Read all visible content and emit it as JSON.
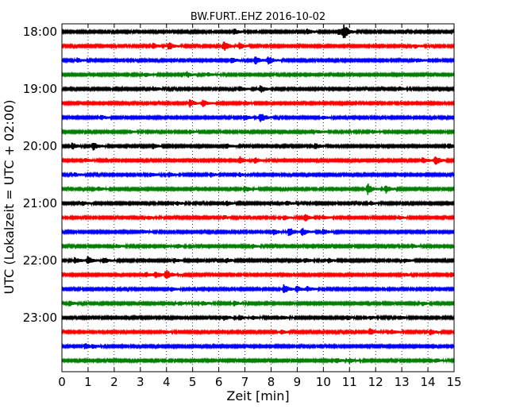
{
  "chart_data": {
    "type": "line",
    "title": "BW.FURT..EHZ 2016-10-02",
    "xlabel": "Zeit  [min]",
    "ylabel": "UTC (Lokalzeit = UTC + 02:00)",
    "xlim": [
      0,
      15
    ],
    "x_ticks": [
      0,
      1,
      2,
      3,
      4,
      5,
      6,
      7,
      8,
      9,
      10,
      11,
      12,
      13,
      14,
      15
    ],
    "x_tick_labels": [
      "0",
      "1",
      "2",
      "3",
      "4",
      "5",
      "6",
      "7",
      "8",
      "9",
      "10",
      "11",
      "12",
      "13",
      "14",
      "15"
    ],
    "grid": "vertical dotted",
    "y_tick_labels": [
      "18:00",
      "19:00",
      "20:00",
      "21:00",
      "22:00",
      "23:00"
    ],
    "y_tick_rows": [
      0,
      4,
      8,
      12,
      16,
      20
    ],
    "series_colors": [
      "#000000",
      "#ff0000",
      "#0000ff",
      "#008000"
    ],
    "rows": [
      {
        "start": "18:00",
        "color": "#000000",
        "events": [
          {
            "x": 6.6,
            "amp": 0.5
          },
          {
            "x": 9.4,
            "amp": 0.45
          },
          {
            "x": 10.8,
            "amp": 1.0
          },
          {
            "x": 10.6,
            "amp": 0.6
          }
        ]
      },
      {
        "start": "18:15",
        "color": "#ff0000",
        "events": [
          {
            "x": 3.5,
            "amp": 0.45
          },
          {
            "x": 4.1,
            "amp": 0.6
          },
          {
            "x": 6.2,
            "amp": 0.8
          },
          {
            "x": 6.8,
            "amp": 0.5
          },
          {
            "x": 13.5,
            "amp": 0.3
          }
        ]
      },
      {
        "start": "18:30",
        "color": "#0000ff",
        "events": [
          {
            "x": 0.6,
            "amp": 0.35
          },
          {
            "x": 6.5,
            "amp": 0.45
          },
          {
            "x": 7.4,
            "amp": 0.6
          },
          {
            "x": 7.9,
            "amp": 0.65
          },
          {
            "x": 13.6,
            "amp": 0.3
          }
        ]
      },
      {
        "start": "18:45",
        "color": "#008000",
        "events": [
          {
            "x": 3.2,
            "amp": 0.3
          },
          {
            "x": 4.8,
            "amp": 0.45
          },
          {
            "x": 5.6,
            "amp": 0.3
          }
        ]
      },
      {
        "start": "19:00",
        "color": "#000000",
        "events": [
          {
            "x": 3.5,
            "amp": 0.35
          },
          {
            "x": 6.8,
            "amp": 0.4
          },
          {
            "x": 7.6,
            "amp": 0.6
          },
          {
            "x": 12.9,
            "amp": 0.3
          }
        ]
      },
      {
        "start": "19:15",
        "color": "#ff0000",
        "events": [
          {
            "x": 4.9,
            "amp": 0.6
          },
          {
            "x": 5.4,
            "amp": 0.5
          },
          {
            "x": 7.0,
            "amp": 0.35
          }
        ]
      },
      {
        "start": "19:30",
        "color": "#0000ff",
        "events": [
          {
            "x": 1.5,
            "amp": 0.35
          },
          {
            "x": 7.0,
            "amp": 0.5
          },
          {
            "x": 7.6,
            "amp": 0.8
          },
          {
            "x": 10.0,
            "amp": 0.25
          }
        ]
      },
      {
        "start": "19:45",
        "color": "#008000",
        "events": [
          {
            "x": 2.6,
            "amp": 0.25
          },
          {
            "x": 4.9,
            "amp": 0.3
          },
          {
            "x": 9.8,
            "amp": 0.3
          },
          {
            "x": 11.9,
            "amp": 0.25
          }
        ]
      },
      {
        "start": "20:00",
        "color": "#000000",
        "events": [
          {
            "x": 0.4,
            "amp": 0.5
          },
          {
            "x": 1.2,
            "amp": 0.7
          },
          {
            "x": 3.5,
            "amp": 0.4
          },
          {
            "x": 6.3,
            "amp": 0.35
          },
          {
            "x": 9.7,
            "amp": 0.45
          },
          {
            "x": 14.8,
            "amp": 0.45
          }
        ]
      },
      {
        "start": "20:15",
        "color": "#ff0000",
        "events": [
          {
            "x": 0.9,
            "amp": 0.3
          },
          {
            "x": 6.8,
            "amp": 0.65
          },
          {
            "x": 7.4,
            "amp": 0.45
          },
          {
            "x": 14.3,
            "amp": 0.7
          },
          {
            "x": 13.8,
            "amp": 0.45
          }
        ]
      },
      {
        "start": "20:30",
        "color": "#0000ff",
        "events": [
          {
            "x": 0.5,
            "amp": 0.3
          },
          {
            "x": 3.4,
            "amp": 0.3
          },
          {
            "x": 4.1,
            "amp": 0.35
          },
          {
            "x": 5.7,
            "amp": 0.3
          },
          {
            "x": 6.8,
            "amp": 0.3
          }
        ]
      },
      {
        "start": "20:45",
        "color": "#008000",
        "events": [
          {
            "x": 1.4,
            "amp": 0.35
          },
          {
            "x": 7.0,
            "amp": 0.5
          },
          {
            "x": 11.7,
            "amp": 0.85
          },
          {
            "x": 12.4,
            "amp": 0.6
          }
        ]
      },
      {
        "start": "21:00",
        "color": "#000000",
        "events": [
          {
            "x": 0.8,
            "amp": 0.3
          },
          {
            "x": 4.4,
            "amp": 0.3
          },
          {
            "x": 6.3,
            "amp": 0.4
          },
          {
            "x": 8.6,
            "amp": 0.35
          },
          {
            "x": 11.8,
            "amp": 0.3
          }
        ]
      },
      {
        "start": "21:15",
        "color": "#ff0000",
        "events": [
          {
            "x": 3.3,
            "amp": 0.3
          },
          {
            "x": 6.2,
            "amp": 0.3
          },
          {
            "x": 8.5,
            "amp": 0.3
          },
          {
            "x": 9.3,
            "amp": 0.6
          },
          {
            "x": 10.0,
            "amp": 0.3
          },
          {
            "x": 12.9,
            "amp": 0.3
          }
        ]
      },
      {
        "start": "21:30",
        "color": "#0000ff",
        "events": [
          {
            "x": 3.1,
            "amp": 0.3
          },
          {
            "x": 8.1,
            "amp": 0.5
          },
          {
            "x": 8.7,
            "amp": 0.75
          },
          {
            "x": 9.2,
            "amp": 0.55
          },
          {
            "x": 10.0,
            "amp": 0.45
          }
        ]
      },
      {
        "start": "21:45",
        "color": "#008000",
        "events": [
          {
            "x": 2.1,
            "amp": 0.3
          },
          {
            "x": 3.9,
            "amp": 0.4
          },
          {
            "x": 4.4,
            "amp": 0.35
          },
          {
            "x": 7.3,
            "amp": 0.3
          },
          {
            "x": 13.4,
            "amp": 0.3
          }
        ]
      },
      {
        "start": "22:00",
        "color": "#000000",
        "events": [
          {
            "x": 0.5,
            "amp": 0.45
          },
          {
            "x": 1.0,
            "amp": 0.6
          },
          {
            "x": 1.6,
            "amp": 0.5
          },
          {
            "x": 4.3,
            "amp": 0.35
          },
          {
            "x": 6.3,
            "amp": 0.35
          },
          {
            "x": 9.3,
            "amp": 0.4
          },
          {
            "x": 10.2,
            "amp": 0.35
          },
          {
            "x": 13.1,
            "amp": 0.3
          }
        ]
      },
      {
        "start": "22:15",
        "color": "#ff0000",
        "events": [
          {
            "x": 3.2,
            "amp": 0.45
          },
          {
            "x": 3.6,
            "amp": 0.5
          },
          {
            "x": 4.0,
            "amp": 0.8
          },
          {
            "x": 13.1,
            "amp": 0.3
          },
          {
            "x": 14.9,
            "amp": 0.4
          }
        ]
      },
      {
        "start": "22:30",
        "color": "#0000ff",
        "events": [
          {
            "x": 4.2,
            "amp": 0.3
          },
          {
            "x": 8.5,
            "amp": 0.7
          },
          {
            "x": 9.0,
            "amp": 0.5
          },
          {
            "x": 9.4,
            "amp": 0.4
          }
        ]
      },
      {
        "start": "22:45",
        "color": "#008000",
        "events": [
          {
            "x": 0.3,
            "amp": 0.4
          },
          {
            "x": 4.5,
            "amp": 0.35
          },
          {
            "x": 5.4,
            "amp": 0.3
          },
          {
            "x": 6.6,
            "amp": 0.45
          },
          {
            "x": 13.8,
            "amp": 0.3
          }
        ]
      },
      {
        "start": "23:00",
        "color": "#000000",
        "events": [
          {
            "x": 6.2,
            "amp": 0.45
          },
          {
            "x": 6.8,
            "amp": 0.4
          },
          {
            "x": 7.3,
            "amp": 0.3
          },
          {
            "x": 8.4,
            "amp": 0.35
          },
          {
            "x": 10.9,
            "amp": 0.35
          },
          {
            "x": 11.8,
            "amp": 0.3
          },
          {
            "x": 12.9,
            "amp": 0.3
          }
        ]
      },
      {
        "start": "23:15",
        "color": "#ff0000",
        "events": [
          {
            "x": 3.9,
            "amp": 0.3
          },
          {
            "x": 8.4,
            "amp": 0.3
          },
          {
            "x": 11.8,
            "amp": 0.6
          },
          {
            "x": 12.6,
            "amp": 0.35
          },
          {
            "x": 14.1,
            "amp": 0.45
          }
        ]
      },
      {
        "start": "23:30",
        "color": "#0000ff",
        "events": [
          {
            "x": 0.9,
            "amp": 0.45
          },
          {
            "x": 1.2,
            "amp": 0.3
          }
        ]
      },
      {
        "start": "23:45",
        "color": "#008000",
        "events": [
          {
            "x": 10.5,
            "amp": 0.45
          },
          {
            "x": 11.0,
            "amp": 0.35
          },
          {
            "x": 14.3,
            "amp": 0.3
          }
        ]
      }
    ]
  }
}
